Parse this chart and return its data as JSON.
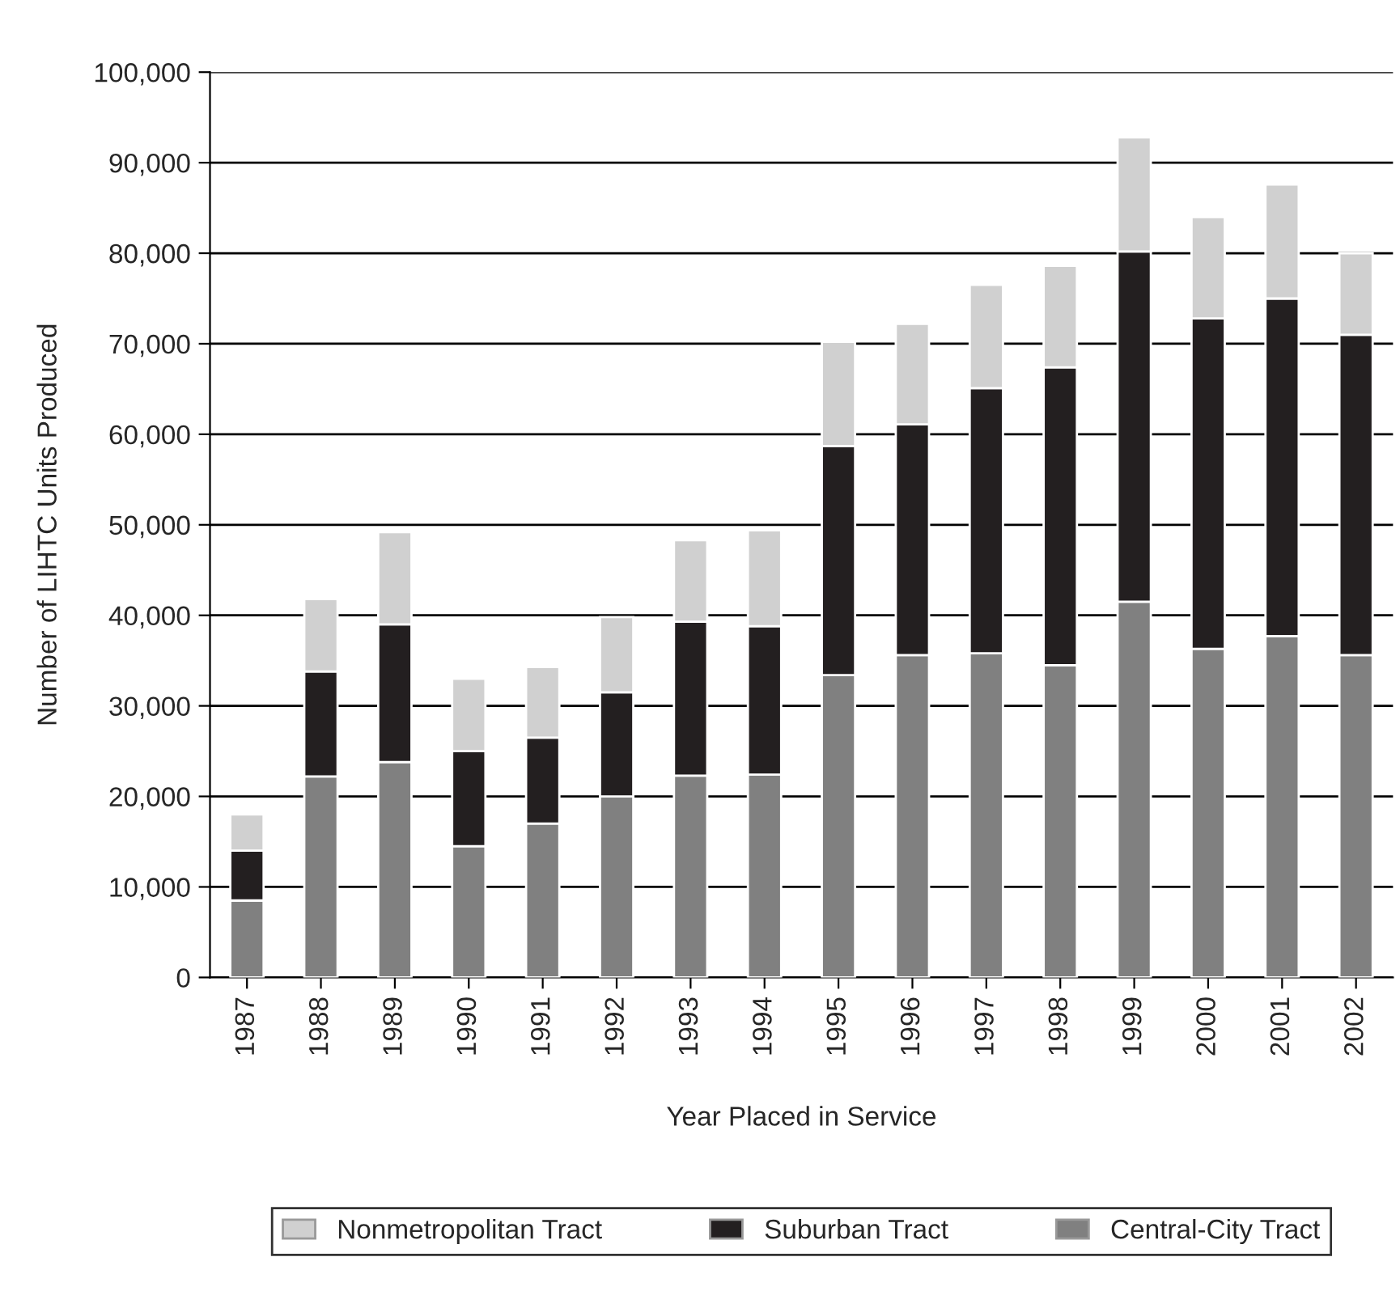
{
  "chart_data": {
    "type": "bar",
    "stacked": true,
    "xlabel": "Year Placed in Service",
    "ylabel": "Number of LIHTC Units Produced",
    "categories": [
      "1987",
      "1988",
      "1989",
      "1990",
      "1991",
      "1992",
      "1993",
      "1994",
      "1995",
      "1996",
      "1997",
      "1998",
      "1999",
      "2000",
      "2001",
      "2002"
    ],
    "series": [
      {
        "name": "Central-City Tract",
        "color": "#808080",
        "values": [
          8500,
          22200,
          23800,
          14500,
          17000,
          20000,
          22300,
          22400,
          33400,
          35600,
          35800,
          34500,
          41500,
          36300,
          37700,
          35600
        ]
      },
      {
        "name": "Suburban Tract",
        "color": "#231f20",
        "values": [
          5500,
          11600,
          15200,
          10500,
          9500,
          11500,
          17000,
          16400,
          25300,
          25500,
          29300,
          32900,
          38700,
          36500,
          37300,
          35400
        ]
      },
      {
        "name": "Nonmetropolitan Tract",
        "color": "#d0d0d0",
        "values": [
          4000,
          8000,
          10200,
          8000,
          7800,
          8300,
          9000,
          10600,
          11500,
          11100,
          11400,
          11200,
          12600,
          11200,
          12600,
          9000
        ]
      }
    ],
    "ylim": [
      0,
      100000
    ],
    "yticks": [
      {
        "value": 0,
        "label": "0"
      },
      {
        "value": 10000,
        "label": "10,000"
      },
      {
        "value": 20000,
        "label": "20,000"
      },
      {
        "value": 30000,
        "label": "30,000"
      },
      {
        "value": 40000,
        "label": "40,000"
      },
      {
        "value": 50000,
        "label": "50,000"
      },
      {
        "value": 60000,
        "label": "60,000"
      },
      {
        "value": 70000,
        "label": "70,000"
      },
      {
        "value": 80000,
        "label": "80,000"
      },
      {
        "value": 90000,
        "label": "90,000"
      },
      {
        "value": 100000,
        "label": "100,000"
      }
    ],
    "grid": "y",
    "legend": "bottom"
  }
}
